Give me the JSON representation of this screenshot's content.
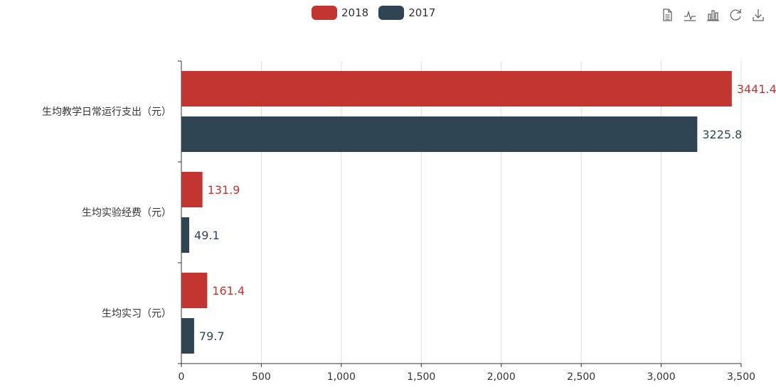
{
  "colors": {
    "series_2018": "#c23531",
    "series_2017": "#2f4554",
    "axis": "#333333",
    "grid": "#dddddd",
    "tool": "#666666"
  },
  "legend": [
    {
      "name": "2018",
      "color": "#c23531"
    },
    {
      "name": "2017",
      "color": "#2f4554"
    }
  ],
  "toolbox": [
    {
      "name": "data-view-icon"
    },
    {
      "name": "line-chart-icon"
    },
    {
      "name": "bar-chart-icon"
    },
    {
      "name": "restore-icon"
    },
    {
      "name": "download-icon"
    }
  ],
  "chart_data": {
    "type": "bar",
    "orientation": "horizontal",
    "categories": [
      "生均教学日常运行支出（元）",
      "生均实验经费（元）",
      "生均实习（元）"
    ],
    "series": [
      {
        "name": "2018",
        "values": [
          3441.4,
          131.9,
          161.4
        ],
        "labels": [
          "3441.4",
          "131.9",
          "161.4"
        ]
      },
      {
        "name": "2017",
        "values": [
          3225.8,
          49.1,
          79.7
        ],
        "labels": [
          "3225.8",
          "49.1",
          "79.7"
        ]
      }
    ],
    "xlim": [
      0,
      3500
    ],
    "xticks": [
      0,
      500,
      1000,
      1500,
      2000,
      2500,
      3000,
      3500
    ],
    "xtick_labels": [
      "0",
      "500",
      "1,000",
      "1,500",
      "2,000",
      "2,500",
      "3,000",
      "3,500"
    ],
    "grid": true,
    "legend_position": "top"
  }
}
